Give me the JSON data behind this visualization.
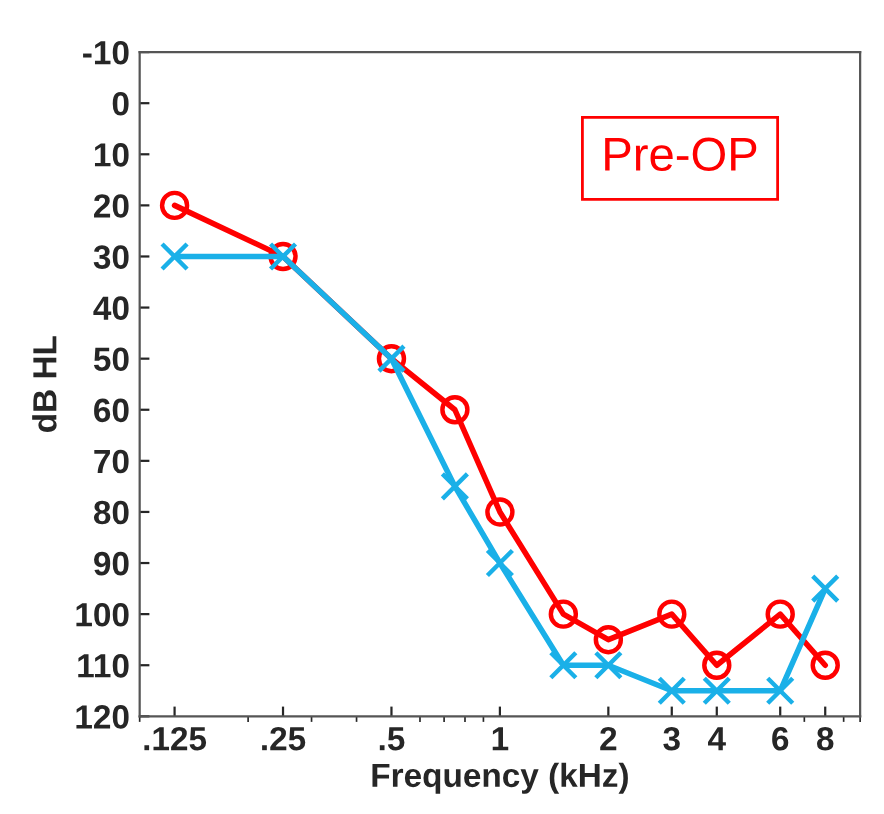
{
  "chart_data": {
    "type": "line",
    "xlabel": "Frequency (kHz)",
    "ylabel": "dB HL",
    "annotations": [
      "Pre-OP"
    ],
    "x": [
      0.125,
      0.25,
      0.5,
      0.75,
      1,
      1.5,
      2,
      3,
      4,
      6,
      8
    ],
    "series": [
      {
        "color": "#ff0000",
        "marker": "circle",
        "values": [
          20,
          30,
          50,
          60,
          80,
          100,
          105,
          100,
          110,
          100,
          110
        ]
      },
      {
        "color": "#1ab0e8",
        "marker": "cross",
        "values": [
          30,
          30,
          50,
          75,
          90,
          110,
          110,
          115,
          115,
          115,
          95
        ]
      }
    ],
    "log": "x",
    "xlim": [
      0.1,
      10
    ],
    "xticks": [
      {
        "value": 0.125,
        "label": ".125"
      },
      {
        "value": 0.25,
        "label": ".25"
      },
      {
        "value": 0.5,
        "label": ".5"
      },
      1,
      2,
      3,
      4,
      6,
      8
    ],
    "ylim": [
      120,
      -10
    ],
    "yticks": [
      -10,
      0,
      10,
      20,
      30,
      40,
      50,
      60,
      70,
      80,
      90,
      100,
      110,
      120
    ],
    "grid": false,
    "legend": false,
    "line_style": "solid"
  }
}
